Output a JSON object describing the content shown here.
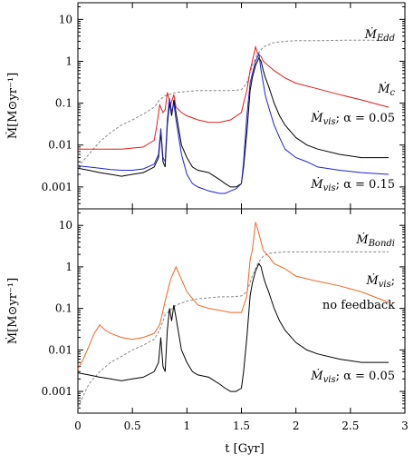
{
  "chart_data": [
    {
      "type": "line",
      "panel": "top",
      "xlim": [
        0,
        3
      ],
      "ylim": [
        0.0003,
        25
      ],
      "yscale": "log",
      "xlabel": "",
      "ylabel": "Ṁ[M⊙yr⁻¹]",
      "y_ticks": [
        "0.001",
        "0.01",
        "0.1",
        "1",
        "10"
      ],
      "x_ticks": [],
      "series": [
        {
          "name": "Ṁ_Edd",
          "label_text": "Ṁ",
          "label_sub": "Edd",
          "color": "#888888",
          "dash": true,
          "x": [
            0,
            0.1,
            0.2,
            0.3,
            0.4,
            0.5,
            0.6,
            0.7,
            0.75,
            0.8,
            0.9,
            1.0,
            1.1,
            1.2,
            1.3,
            1.4,
            1.5,
            1.55,
            1.6,
            1.65,
            1.7,
            1.8,
            1.9,
            2.0,
            2.2,
            2.5,
            2.85
          ],
          "y": [
            0.003,
            0.006,
            0.012,
            0.02,
            0.03,
            0.04,
            0.055,
            0.08,
            0.12,
            0.15,
            0.18,
            0.19,
            0.2,
            0.2,
            0.2,
            0.2,
            0.21,
            0.3,
            0.8,
            1.5,
            2.2,
            2.8,
            3.0,
            3.1,
            3.1,
            3.2,
            3.2
          ]
        },
        {
          "name": "Ṁ_c",
          "label_text": "Ṁ",
          "label_sub": "c",
          "color": "#e31a1c",
          "dash": false,
          "x": [
            0,
            0.2,
            0.4,
            0.6,
            0.7,
            0.72,
            0.75,
            0.78,
            0.8,
            0.82,
            0.85,
            0.88,
            0.9,
            0.95,
            1.0,
            1.1,
            1.2,
            1.3,
            1.4,
            1.5,
            1.52,
            1.55,
            1.58,
            1.6,
            1.63,
            1.65,
            1.68,
            1.7,
            1.8,
            1.9,
            2.0,
            2.2,
            2.4,
            2.6,
            2.85
          ],
          "y": [
            0.008,
            0.008,
            0.008,
            0.009,
            0.013,
            0.025,
            0.09,
            0.06,
            0.07,
            0.18,
            0.09,
            0.16,
            0.08,
            0.06,
            0.05,
            0.04,
            0.035,
            0.035,
            0.04,
            0.06,
            0.1,
            0.2,
            0.6,
            1.0,
            2.2,
            1.5,
            1.3,
            1.0,
            0.6,
            0.4,
            0.3,
            0.22,
            0.16,
            0.12,
            0.08
          ]
        },
        {
          "name": "Ṁ_vis; α = 0.05",
          "label_text": "Ṁ",
          "label_sub": "vis",
          "label_rest": "; α = 0.05",
          "color": "#000000",
          "dash": false,
          "x": [
            0,
            0.1,
            0.2,
            0.3,
            0.4,
            0.5,
            0.6,
            0.7,
            0.74,
            0.76,
            0.78,
            0.8,
            0.82,
            0.84,
            0.86,
            0.88,
            0.9,
            0.95,
            1.0,
            1.05,
            1.1,
            1.2,
            1.3,
            1.35,
            1.4,
            1.45,
            1.5,
            1.52,
            1.55,
            1.58,
            1.6,
            1.63,
            1.66,
            1.68,
            1.7,
            1.72,
            1.75,
            1.8,
            1.85,
            1.9,
            2.0,
            2.1,
            2.2,
            2.4,
            2.6,
            2.85
          ],
          "y": [
            0.0028,
            0.0025,
            0.0022,
            0.002,
            0.0018,
            0.002,
            0.0022,
            0.003,
            0.005,
            0.02,
            0.004,
            0.003,
            0.03,
            0.1,
            0.05,
            0.12,
            0.06,
            0.01,
            0.005,
            0.003,
            0.0025,
            0.0022,
            0.0015,
            0.0012,
            0.001,
            0.001,
            0.0012,
            0.003,
            0.02,
            0.2,
            0.4,
            0.8,
            1.2,
            1.0,
            0.6,
            0.4,
            0.25,
            0.1,
            0.05,
            0.03,
            0.015,
            0.01,
            0.008,
            0.006,
            0.005,
            0.005
          ]
        },
        {
          "name": "Ṁ_vis; α = 0.15",
          "label_text": "Ṁ",
          "label_sub": "vis",
          "label_rest": "; α = 0.15",
          "color": "#1f1fd6",
          "dash": false,
          "x": [
            0,
            0.1,
            0.2,
            0.3,
            0.4,
            0.5,
            0.6,
            0.7,
            0.74,
            0.76,
            0.78,
            0.8,
            0.82,
            0.84,
            0.86,
            0.88,
            0.9,
            0.95,
            1.0,
            1.05,
            1.1,
            1.2,
            1.3,
            1.35,
            1.4,
            1.45,
            1.5,
            1.52,
            1.55,
            1.58,
            1.6,
            1.63,
            1.66,
            1.68,
            1.7,
            1.72,
            1.75,
            1.8,
            1.85,
            1.9,
            2.0,
            2.1,
            2.2,
            2.4,
            2.6,
            2.85
          ],
          "y": [
            0.0032,
            0.003,
            0.0028,
            0.0026,
            0.0025,
            0.0025,
            0.0027,
            0.0035,
            0.006,
            0.025,
            0.005,
            0.004,
            0.04,
            0.13,
            0.06,
            0.1,
            0.04,
            0.006,
            0.002,
            0.0012,
            0.001,
            0.0008,
            0.0007,
            0.0007,
            0.0008,
            0.0009,
            0.0012,
            0.004,
            0.05,
            0.3,
            0.5,
            1.0,
            1.5,
            0.6,
            0.3,
            0.15,
            0.08,
            0.03,
            0.015,
            0.008,
            0.005,
            0.004,
            0.003,
            0.0025,
            0.0022,
            0.002
          ]
        }
      ]
    },
    {
      "type": "line",
      "panel": "bottom",
      "xlim": [
        0,
        3
      ],
      "ylim": [
        0.0003,
        25
      ],
      "yscale": "log",
      "xlabel": "t [Gyr]",
      "ylabel": "Ṁ[M⊙yr⁻¹]",
      "y_ticks": [
        "0.001",
        "0.01",
        "0.1",
        "1",
        "10"
      ],
      "x_ticks": [
        "0",
        "0.5",
        "1",
        "1.5",
        "2",
        "2.5",
        "3"
      ],
      "series": [
        {
          "name": "Ṁ_Bondi",
          "label_text": "Ṁ",
          "label_sub": "Bondi",
          "color": "#888888",
          "dash": true,
          "x": [
            0,
            0.05,
            0.1,
            0.2,
            0.3,
            0.4,
            0.5,
            0.6,
            0.7,
            0.75,
            0.8,
            0.9,
            1.0,
            1.1,
            1.2,
            1.3,
            1.4,
            1.5,
            1.55,
            1.6,
            1.65,
            1.7,
            1.75,
            1.8,
            1.9,
            2.0,
            2.2,
            2.5,
            2.85
          ],
          "y": [
            0.0004,
            0.0008,
            0.0015,
            0.003,
            0.005,
            0.007,
            0.01,
            0.013,
            0.018,
            0.03,
            0.07,
            0.12,
            0.15,
            0.17,
            0.18,
            0.19,
            0.19,
            0.2,
            0.25,
            0.6,
            1.2,
            1.8,
            2.1,
            2.2,
            2.3,
            2.3,
            2.3,
            2.3,
            2.3
          ]
        },
        {
          "name": "Ṁ_vis; no feedback",
          "label_text": "Ṁ",
          "label_sub": "vis",
          "label_rest": ";",
          "label_line2": "no feedback",
          "color": "#f26522",
          "dash": false,
          "x": [
            0,
            0.05,
            0.1,
            0.15,
            0.2,
            0.25,
            0.3,
            0.4,
            0.5,
            0.6,
            0.7,
            0.75,
            0.8,
            0.85,
            0.9,
            0.95,
            1.0,
            1.1,
            1.2,
            1.3,
            1.4,
            1.5,
            1.55,
            1.58,
            1.6,
            1.63,
            1.65,
            1.67,
            1.7,
            1.75,
            1.8,
            1.9,
            2.0,
            2.2,
            2.4,
            2.6,
            2.85
          ],
          "y": [
            0.0035,
            0.006,
            0.012,
            0.025,
            0.04,
            0.03,
            0.025,
            0.02,
            0.018,
            0.02,
            0.025,
            0.04,
            0.15,
            0.5,
            1.0,
            0.5,
            0.25,
            0.12,
            0.1,
            0.09,
            0.08,
            0.08,
            0.2,
            1.5,
            2.5,
            12.0,
            8.0,
            5.0,
            2.5,
            1.8,
            1.2,
            0.9,
            0.6,
            0.45,
            0.35,
            0.25,
            0.14
          ]
        },
        {
          "name": "Ṁ_vis; α = 0.05",
          "label_text": "Ṁ",
          "label_sub": "vis",
          "label_rest": "; α = 0.05",
          "color": "#000000",
          "dash": false,
          "x": [
            0,
            0.1,
            0.2,
            0.3,
            0.4,
            0.5,
            0.6,
            0.7,
            0.74,
            0.76,
            0.78,
            0.8,
            0.82,
            0.84,
            0.86,
            0.88,
            0.9,
            0.95,
            1.0,
            1.05,
            1.1,
            1.2,
            1.3,
            1.35,
            1.4,
            1.45,
            1.5,
            1.52,
            1.55,
            1.58,
            1.6,
            1.63,
            1.66,
            1.68,
            1.7,
            1.72,
            1.75,
            1.8,
            1.85,
            1.9,
            2.0,
            2.1,
            2.2,
            2.4,
            2.6,
            2.85
          ],
          "y": [
            0.0028,
            0.0025,
            0.0022,
            0.002,
            0.0018,
            0.002,
            0.0022,
            0.003,
            0.005,
            0.02,
            0.004,
            0.003,
            0.03,
            0.1,
            0.05,
            0.12,
            0.06,
            0.01,
            0.005,
            0.003,
            0.0025,
            0.0022,
            0.0015,
            0.0012,
            0.001,
            0.001,
            0.0012,
            0.003,
            0.02,
            0.2,
            0.4,
            0.8,
            1.2,
            1.0,
            0.6,
            0.4,
            0.25,
            0.1,
            0.05,
            0.03,
            0.015,
            0.01,
            0.008,
            0.006,
            0.005,
            0.005
          ]
        }
      ]
    }
  ]
}
